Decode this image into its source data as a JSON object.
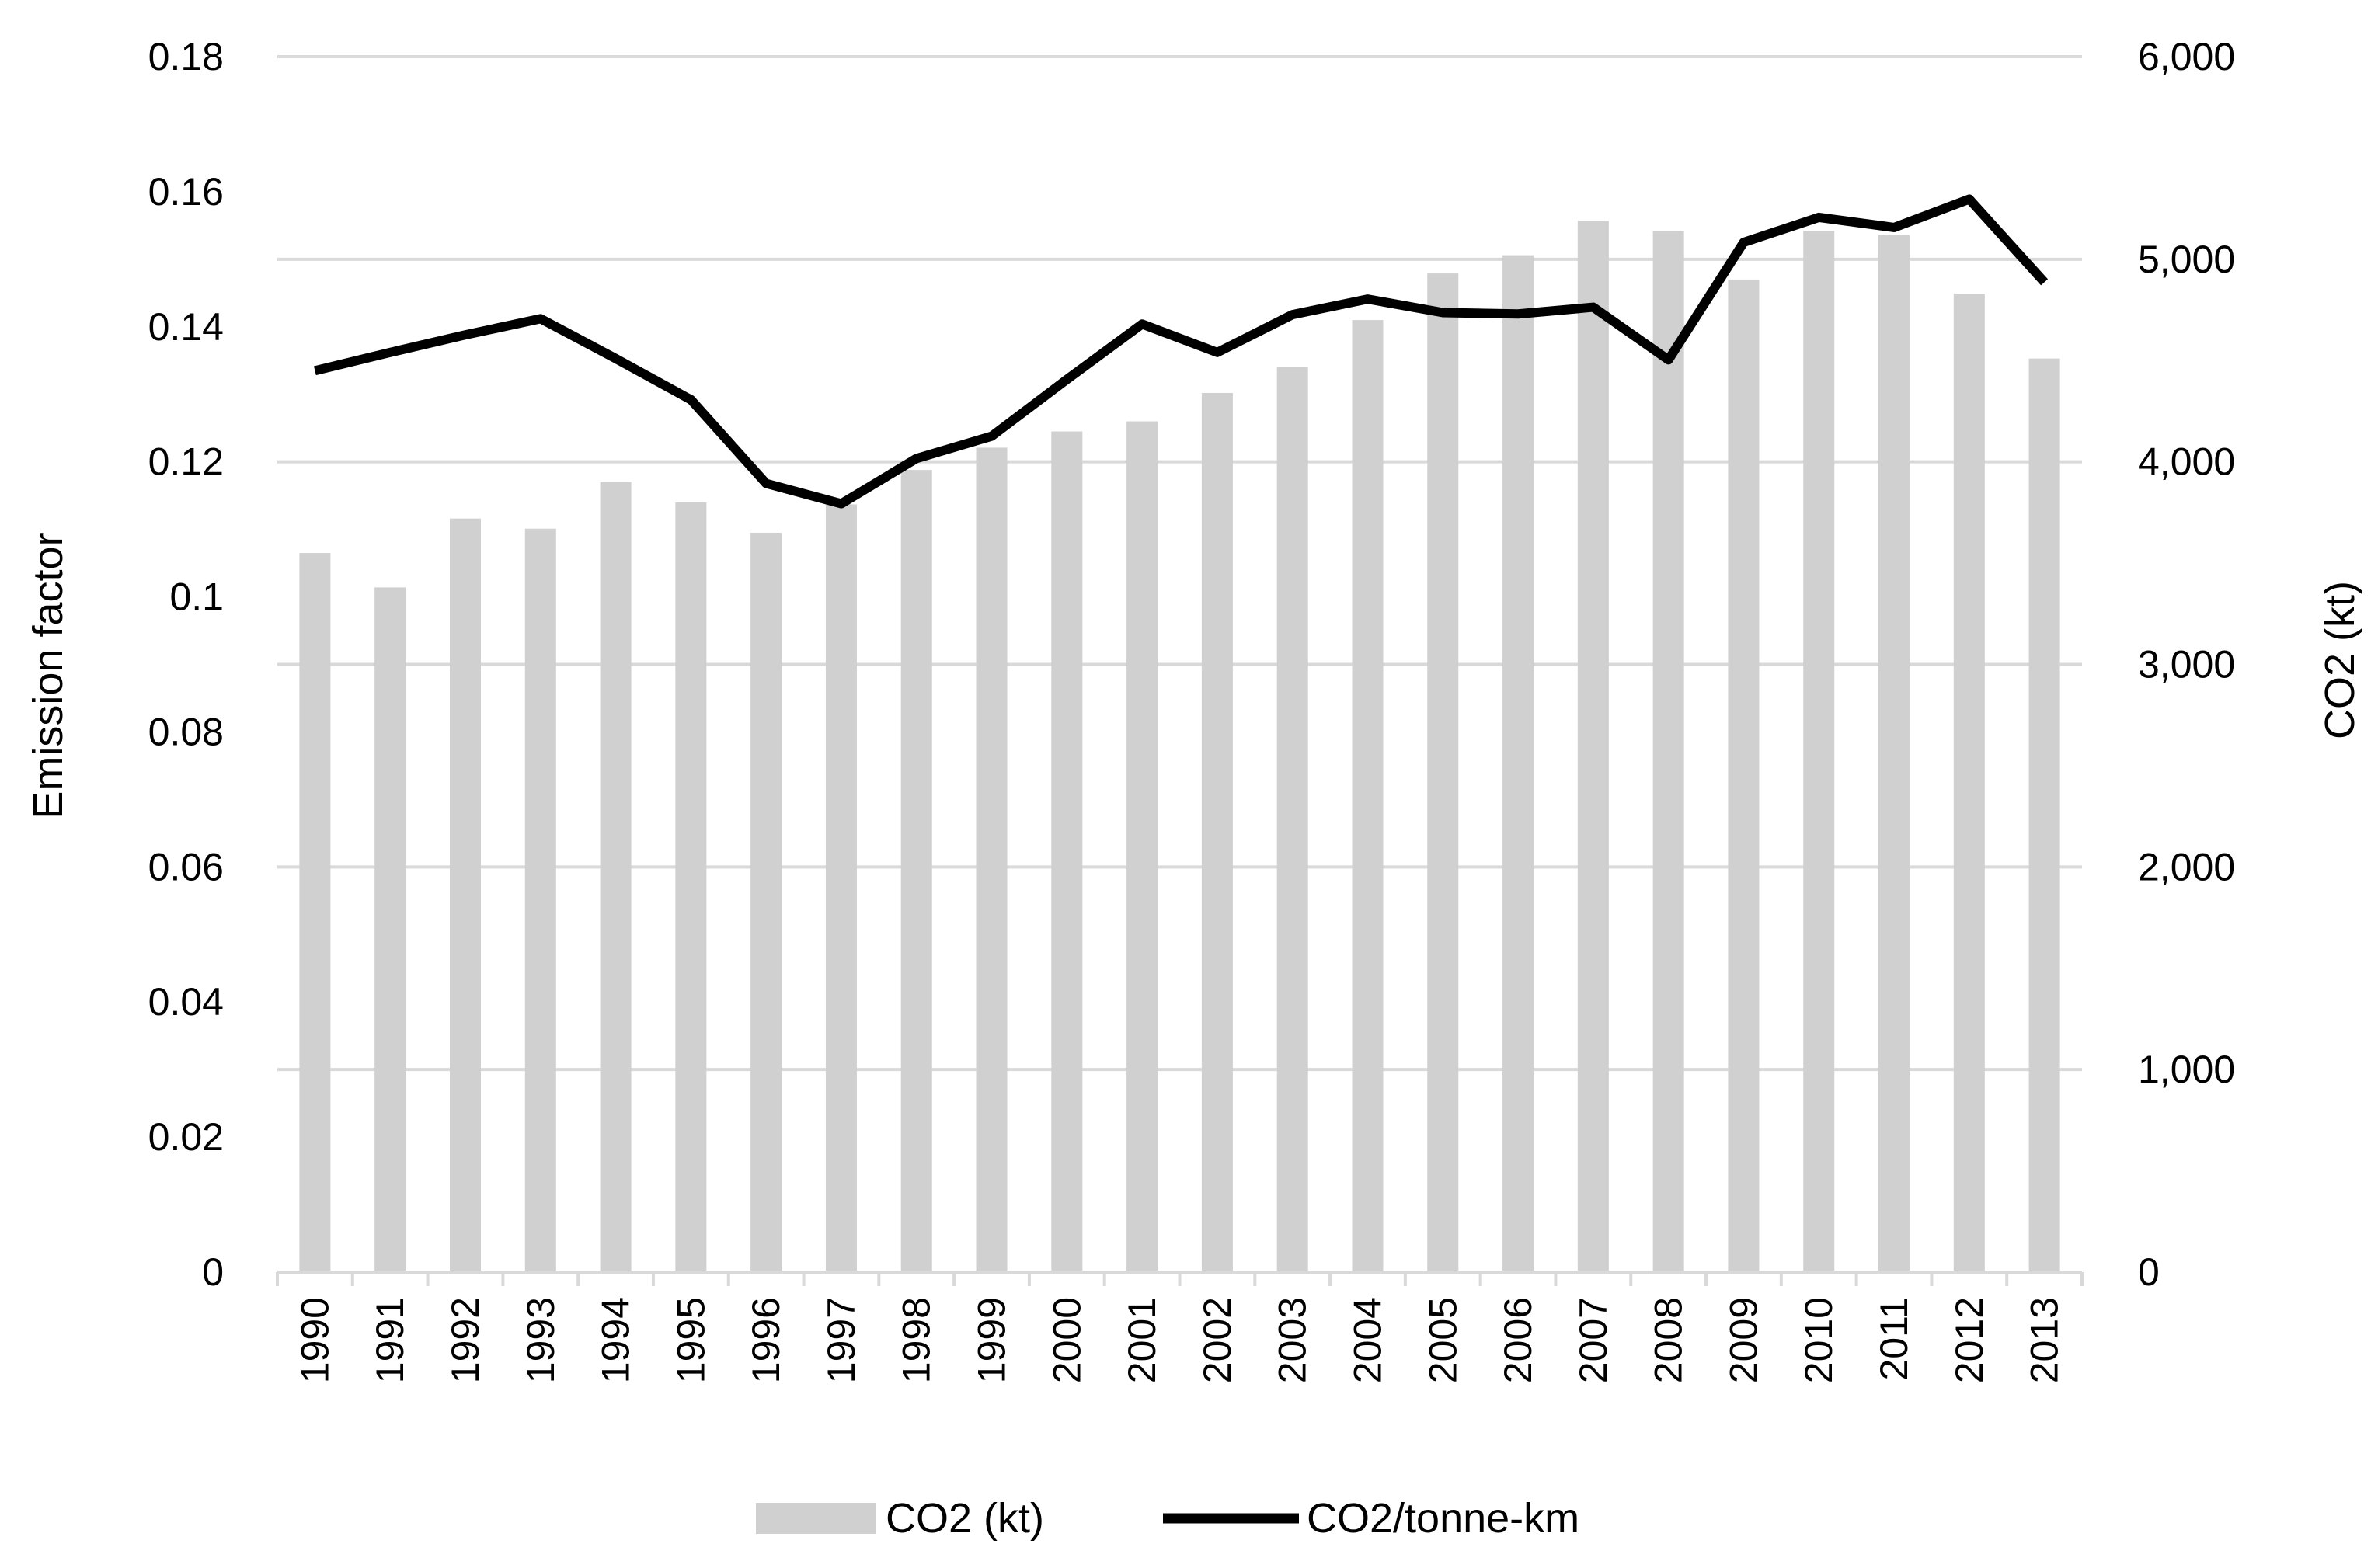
{
  "chart_data": {
    "type": "bar+line",
    "title": "",
    "categories": [
      "1990",
      "1991",
      "1992",
      "1993",
      "1994",
      "1995",
      "1996",
      "1997",
      "1998",
      "1999",
      "2000",
      "2001",
      "2002",
      "2003",
      "2004",
      "2005",
      "2006",
      "2007",
      "2008",
      "2009",
      "2010",
      "2011",
      "2012",
      "2013"
    ],
    "series": [
      {
        "name": "CO2 (kt)",
        "type": "bar",
        "axis": "right",
        "color": "#d0d0d0",
        "values": [
          3550,
          3380,
          3720,
          3670,
          3900,
          3800,
          3650,
          3790,
          3960,
          4070,
          4150,
          4200,
          4340,
          4470,
          4700,
          4930,
          5020,
          5190,
          5140,
          4900,
          5140,
          5120,
          4830,
          4510
        ]
      },
      {
        "name": "CO2/tonne-km",
        "type": "line",
        "axis": "left",
        "color": "#000000",
        "values": [
          0.1335,
          0.1362,
          0.1388,
          0.1412,
          0.1353,
          0.1292,
          0.1168,
          0.1138,
          0.1205,
          0.1238,
          0.1322,
          0.1404,
          0.1362,
          0.1418,
          0.1441,
          0.1421,
          0.1419,
          0.1429,
          0.1351,
          0.1525,
          0.1562,
          0.1547,
          0.1589,
          0.1466
        ]
      }
    ],
    "y_left": {
      "label": "Emission factor",
      "ylim": [
        0,
        0.18
      ],
      "ticks": [
        0,
        0.02,
        0.04,
        0.06,
        0.08,
        0.1,
        0.12,
        0.14,
        0.16,
        0.18
      ],
      "tick_labels": [
        "0",
        "0.02",
        "0.04",
        "0.06",
        "0.08",
        "0.1",
        "0.12",
        "0.14",
        "0.16",
        "0.18"
      ]
    },
    "y_right": {
      "label": "CO2 (kt)",
      "ylim": [
        0,
        6000
      ],
      "ticks": [
        0,
        1000,
        2000,
        3000,
        4000,
        5000,
        6000
      ],
      "tick_labels": [
        "0",
        "1,000",
        "2,000",
        "3,000",
        "4,000",
        "5,000",
        "6,000"
      ]
    },
    "xlabel": "",
    "grid": true,
    "gridline_color": "#d9d9d9",
    "legend": {
      "position": "bottom",
      "entries": [
        "CO2 (kt)",
        "CO2/tonne-km"
      ]
    }
  }
}
